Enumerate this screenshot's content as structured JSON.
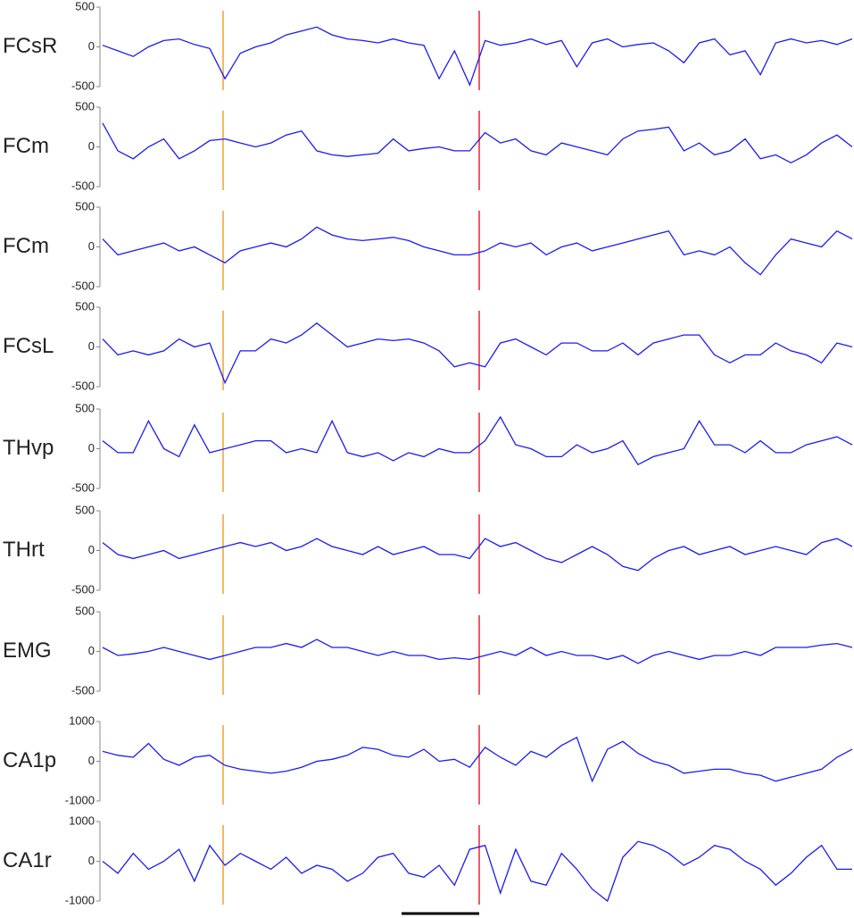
{
  "chart_data": [
    {
      "type": "line",
      "ylabel": "FCsR",
      "ylim": [
        -500,
        500
      ],
      "yticks": [
        -500,
        0,
        500
      ],
      "color": "#1a1aff",
      "values": [
        20,
        -50,
        -120,
        0,
        80,
        100,
        30,
        -20,
        -400,
        -80,
        0,
        50,
        150,
        200,
        250,
        150,
        100,
        80,
        50,
        100,
        50,
        20,
        -400,
        -50,
        -480,
        80,
        20,
        50,
        100,
        30,
        80,
        -250,
        50,
        100,
        0,
        30,
        50,
        -50,
        -200,
        50,
        100,
        -100,
        -50,
        -350,
        50,
        100,
        50,
        80,
        30,
        100
      ]
    },
    {
      "type": "line",
      "ylabel": "FCm",
      "ylim": [
        -500,
        500
      ],
      "yticks": [
        -500,
        0,
        500
      ],
      "color": "#1a1aff",
      "values": [
        300,
        -50,
        -150,
        0,
        100,
        -150,
        -50,
        80,
        100,
        50,
        0,
        50,
        150,
        200,
        -50,
        -100,
        -120,
        -100,
        -80,
        100,
        -50,
        -20,
        0,
        -50,
        -50,
        180,
        50,
        100,
        -50,
        -100,
        50,
        0,
        -50,
        -100,
        100,
        200,
        220,
        250,
        -50,
        50,
        -100,
        -50,
        100,
        -150,
        -100,
        -200,
        -100,
        50,
        150,
        0
      ]
    },
    {
      "type": "line",
      "ylabel": "FCm",
      "ylim": [
        -500,
        500
      ],
      "yticks": [
        -500,
        0,
        500
      ],
      "color": "#1a1aff",
      "values": [
        100,
        -100,
        -50,
        0,
        50,
        -50,
        0,
        -100,
        -200,
        -50,
        0,
        50,
        0,
        100,
        250,
        150,
        100,
        80,
        100,
        120,
        80,
        0,
        -50,
        -100,
        -100,
        -50,
        50,
        0,
        50,
        -100,
        0,
        50,
        -50,
        0,
        50,
        100,
        150,
        200,
        -100,
        -50,
        -100,
        0,
        -200,
        -350,
        -100,
        100,
        50,
        0,
        200,
        100
      ]
    },
    {
      "type": "line",
      "ylabel": "FCsL",
      "ylim": [
        -500,
        500
      ],
      "yticks": [
        -500,
        0,
        500
      ],
      "color": "#1a1aff",
      "values": [
        100,
        -100,
        -50,
        -100,
        -50,
        100,
        0,
        50,
        -450,
        -50,
        -50,
        100,
        50,
        150,
        300,
        150,
        0,
        50,
        100,
        80,
        100,
        50,
        -50,
        -250,
        -200,
        -250,
        50,
        100,
        0,
        -100,
        50,
        50,
        -50,
        -50,
        50,
        -100,
        50,
        100,
        150,
        150,
        -100,
        -200,
        -100,
        -100,
        50,
        -50,
        -100,
        -200,
        50,
        0
      ]
    },
    {
      "type": "line",
      "ylabel": "THvp",
      "ylim": [
        -500,
        500
      ],
      "yticks": [
        -500,
        0,
        500
      ],
      "color": "#1a1aff",
      "values": [
        100,
        -50,
        -50,
        350,
        0,
        -100,
        300,
        -50,
        0,
        50,
        100,
        100,
        -50,
        0,
        -50,
        350,
        -50,
        -100,
        -50,
        -150,
        -50,
        -100,
        0,
        -50,
        -50,
        100,
        400,
        50,
        0,
        -100,
        -100,
        50,
        -50,
        0,
        100,
        -200,
        -100,
        -50,
        0,
        350,
        50,
        50,
        -50,
        100,
        -50,
        -50,
        50,
        100,
        150,
        50
      ]
    },
    {
      "type": "line",
      "ylabel": "THrt",
      "ylim": [
        -500,
        500
      ],
      "yticks": [
        -500,
        0,
        500
      ],
      "color": "#1a1aff",
      "values": [
        100,
        -50,
        -100,
        -50,
        0,
        -100,
        -50,
        0,
        50,
        100,
        50,
        100,
        0,
        50,
        150,
        50,
        0,
        -50,
        50,
        -50,
        0,
        50,
        -50,
        -50,
        -100,
        150,
        50,
        100,
        0,
        -100,
        -150,
        -50,
        50,
        -50,
        -200,
        -250,
        -100,
        0,
        50,
        -50,
        0,
        50,
        -50,
        0,
        50,
        0,
        -50,
        100,
        150,
        50
      ]
    },
    {
      "type": "line",
      "ylabel": "EMG",
      "ylim": [
        -500,
        500
      ],
      "yticks": [
        -500,
        0,
        500
      ],
      "color": "#1a1aff",
      "values": [
        50,
        -50,
        -30,
        0,
        50,
        0,
        -50,
        -100,
        -50,
        0,
        50,
        50,
        100,
        50,
        150,
        50,
        50,
        0,
        -50,
        0,
        -50,
        -50,
        -100,
        -80,
        -100,
        -50,
        0,
        -50,
        50,
        -50,
        0,
        -50,
        -50,
        -100,
        -50,
        -150,
        -50,
        0,
        -50,
        -100,
        -50,
        -50,
        0,
        -50,
        50,
        50,
        50,
        80,
        100,
        50
      ]
    },
    {
      "type": "line",
      "ylabel": "CA1p",
      "ylim": [
        -1000,
        1000
      ],
      "yticks": [
        -1000,
        0,
        1000
      ],
      "color": "#1a1aff",
      "values": [
        250,
        150,
        100,
        450,
        50,
        -100,
        100,
        150,
        -100,
        -200,
        -250,
        -300,
        -250,
        -150,
        0,
        50,
        150,
        350,
        300,
        150,
        100,
        300,
        0,
        50,
        -150,
        350,
        100,
        -100,
        250,
        100,
        400,
        600,
        -500,
        300,
        500,
        200,
        0,
        -100,
        -300,
        -250,
        -200,
        -200,
        -300,
        -350,
        -500,
        -400,
        -300,
        -200,
        100,
        300
      ]
    },
    {
      "type": "line",
      "ylabel": "CA1r",
      "ylim": [
        -1000,
        1000
      ],
      "yticks": [
        -1000,
        0,
        1000
      ],
      "color": "#1a1aff",
      "values": [
        0,
        -300,
        200,
        -200,
        0,
        300,
        -500,
        400,
        -100,
        200,
        0,
        -200,
        100,
        -300,
        -100,
        -200,
        -500,
        -300,
        100,
        200,
        -300,
        -400,
        -100,
        -600,
        300,
        400,
        -800,
        300,
        -500,
        -600,
        200,
        -200,
        -700,
        -1000,
        100,
        500,
        400,
        200,
        -100,
        100,
        400,
        300,
        0,
        -200,
        -600,
        -300,
        100,
        400,
        -200,
        -200
      ]
    }
  ]
}
